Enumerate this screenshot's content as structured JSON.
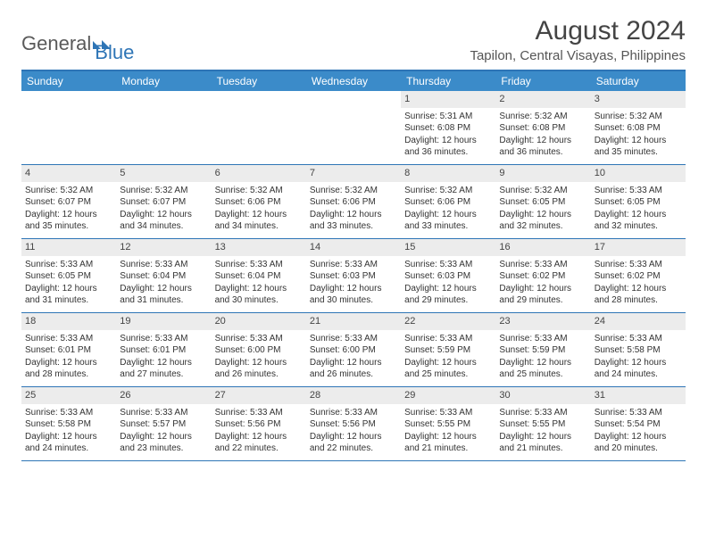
{
  "brand": {
    "part1": "General",
    "part2": "Blue"
  },
  "title": "August 2024",
  "location": "Tapilon, Central Visayas, Philippines",
  "colors": {
    "header_bg": "#3b8bc9",
    "border": "#2e75b6",
    "daynum_bg": "#ececec",
    "text": "#333333",
    "title": "#444444"
  },
  "dow": [
    "Sunday",
    "Monday",
    "Tuesday",
    "Wednesday",
    "Thursday",
    "Friday",
    "Saturday"
  ],
  "weeks": [
    [
      {
        "n": "",
        "sr": "",
        "ss": "",
        "dl": ""
      },
      {
        "n": "",
        "sr": "",
        "ss": "",
        "dl": ""
      },
      {
        "n": "",
        "sr": "",
        "ss": "",
        "dl": ""
      },
      {
        "n": "",
        "sr": "",
        "ss": "",
        "dl": ""
      },
      {
        "n": "1",
        "sr": "Sunrise: 5:31 AM",
        "ss": "Sunset: 6:08 PM",
        "dl": "Daylight: 12 hours and 36 minutes."
      },
      {
        "n": "2",
        "sr": "Sunrise: 5:32 AM",
        "ss": "Sunset: 6:08 PM",
        "dl": "Daylight: 12 hours and 36 minutes."
      },
      {
        "n": "3",
        "sr": "Sunrise: 5:32 AM",
        "ss": "Sunset: 6:08 PM",
        "dl": "Daylight: 12 hours and 35 minutes."
      }
    ],
    [
      {
        "n": "4",
        "sr": "Sunrise: 5:32 AM",
        "ss": "Sunset: 6:07 PM",
        "dl": "Daylight: 12 hours and 35 minutes."
      },
      {
        "n": "5",
        "sr": "Sunrise: 5:32 AM",
        "ss": "Sunset: 6:07 PM",
        "dl": "Daylight: 12 hours and 34 minutes."
      },
      {
        "n": "6",
        "sr": "Sunrise: 5:32 AM",
        "ss": "Sunset: 6:06 PM",
        "dl": "Daylight: 12 hours and 34 minutes."
      },
      {
        "n": "7",
        "sr": "Sunrise: 5:32 AM",
        "ss": "Sunset: 6:06 PM",
        "dl": "Daylight: 12 hours and 33 minutes."
      },
      {
        "n": "8",
        "sr": "Sunrise: 5:32 AM",
        "ss": "Sunset: 6:06 PM",
        "dl": "Daylight: 12 hours and 33 minutes."
      },
      {
        "n": "9",
        "sr": "Sunrise: 5:32 AM",
        "ss": "Sunset: 6:05 PM",
        "dl": "Daylight: 12 hours and 32 minutes."
      },
      {
        "n": "10",
        "sr": "Sunrise: 5:33 AM",
        "ss": "Sunset: 6:05 PM",
        "dl": "Daylight: 12 hours and 32 minutes."
      }
    ],
    [
      {
        "n": "11",
        "sr": "Sunrise: 5:33 AM",
        "ss": "Sunset: 6:05 PM",
        "dl": "Daylight: 12 hours and 31 minutes."
      },
      {
        "n": "12",
        "sr": "Sunrise: 5:33 AM",
        "ss": "Sunset: 6:04 PM",
        "dl": "Daylight: 12 hours and 31 minutes."
      },
      {
        "n": "13",
        "sr": "Sunrise: 5:33 AM",
        "ss": "Sunset: 6:04 PM",
        "dl": "Daylight: 12 hours and 30 minutes."
      },
      {
        "n": "14",
        "sr": "Sunrise: 5:33 AM",
        "ss": "Sunset: 6:03 PM",
        "dl": "Daylight: 12 hours and 30 minutes."
      },
      {
        "n": "15",
        "sr": "Sunrise: 5:33 AM",
        "ss": "Sunset: 6:03 PM",
        "dl": "Daylight: 12 hours and 29 minutes."
      },
      {
        "n": "16",
        "sr": "Sunrise: 5:33 AM",
        "ss": "Sunset: 6:02 PM",
        "dl": "Daylight: 12 hours and 29 minutes."
      },
      {
        "n": "17",
        "sr": "Sunrise: 5:33 AM",
        "ss": "Sunset: 6:02 PM",
        "dl": "Daylight: 12 hours and 28 minutes."
      }
    ],
    [
      {
        "n": "18",
        "sr": "Sunrise: 5:33 AM",
        "ss": "Sunset: 6:01 PM",
        "dl": "Daylight: 12 hours and 28 minutes."
      },
      {
        "n": "19",
        "sr": "Sunrise: 5:33 AM",
        "ss": "Sunset: 6:01 PM",
        "dl": "Daylight: 12 hours and 27 minutes."
      },
      {
        "n": "20",
        "sr": "Sunrise: 5:33 AM",
        "ss": "Sunset: 6:00 PM",
        "dl": "Daylight: 12 hours and 26 minutes."
      },
      {
        "n": "21",
        "sr": "Sunrise: 5:33 AM",
        "ss": "Sunset: 6:00 PM",
        "dl": "Daylight: 12 hours and 26 minutes."
      },
      {
        "n": "22",
        "sr": "Sunrise: 5:33 AM",
        "ss": "Sunset: 5:59 PM",
        "dl": "Daylight: 12 hours and 25 minutes."
      },
      {
        "n": "23",
        "sr": "Sunrise: 5:33 AM",
        "ss": "Sunset: 5:59 PM",
        "dl": "Daylight: 12 hours and 25 minutes."
      },
      {
        "n": "24",
        "sr": "Sunrise: 5:33 AM",
        "ss": "Sunset: 5:58 PM",
        "dl": "Daylight: 12 hours and 24 minutes."
      }
    ],
    [
      {
        "n": "25",
        "sr": "Sunrise: 5:33 AM",
        "ss": "Sunset: 5:58 PM",
        "dl": "Daylight: 12 hours and 24 minutes."
      },
      {
        "n": "26",
        "sr": "Sunrise: 5:33 AM",
        "ss": "Sunset: 5:57 PM",
        "dl": "Daylight: 12 hours and 23 minutes."
      },
      {
        "n": "27",
        "sr": "Sunrise: 5:33 AM",
        "ss": "Sunset: 5:56 PM",
        "dl": "Daylight: 12 hours and 22 minutes."
      },
      {
        "n": "28",
        "sr": "Sunrise: 5:33 AM",
        "ss": "Sunset: 5:56 PM",
        "dl": "Daylight: 12 hours and 22 minutes."
      },
      {
        "n": "29",
        "sr": "Sunrise: 5:33 AM",
        "ss": "Sunset: 5:55 PM",
        "dl": "Daylight: 12 hours and 21 minutes."
      },
      {
        "n": "30",
        "sr": "Sunrise: 5:33 AM",
        "ss": "Sunset: 5:55 PM",
        "dl": "Daylight: 12 hours and 21 minutes."
      },
      {
        "n": "31",
        "sr": "Sunrise: 5:33 AM",
        "ss": "Sunset: 5:54 PM",
        "dl": "Daylight: 12 hours and 20 minutes."
      }
    ]
  ]
}
